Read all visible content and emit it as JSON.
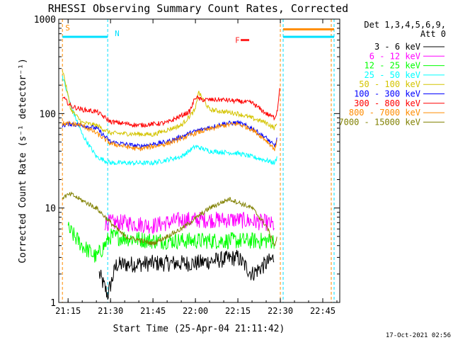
{
  "chart_data": {
    "type": "line",
    "title": "RHESSI Observing Summary Count Rates, Corrected",
    "xlabel": "Start Time (25-Apr-04 21:11:42)",
    "ylabel": "Corrected Count Rate (s⁻¹ detector⁻¹)",
    "yscale": "log",
    "ylim": [
      1,
      1000
    ],
    "xlim": [
      "21:11:42",
      "22:51:00"
    ],
    "x_ticks": [
      "21:15",
      "21:30",
      "21:45",
      "22:00",
      "22:15",
      "22:30",
      "22:45"
    ],
    "y_ticks": [
      "1",
      "10",
      "100",
      "1000"
    ],
    "legend_title": [
      "Det 1,3,4,5,6,9,",
      "Att 0"
    ],
    "legend_position": "right",
    "timestamp": "17-Oct-2021 02:56",
    "annotations": [
      {
        "label": "S",
        "time": "21:13",
        "color": "#ff8c00"
      },
      {
        "label": "N",
        "time": "21:30",
        "color": "#00e0ff"
      },
      {
        "label": "F",
        "time": "22:18",
        "color": "#ff2020"
      }
    ],
    "vertical_markers": [
      {
        "time": "21:13",
        "color": "#ff8c00"
      },
      {
        "time": "21:29",
        "color": "#00e0ff"
      },
      {
        "time": "22:30",
        "color": "#ff8c00"
      },
      {
        "time": "22:31",
        "color": "#00e0ff"
      },
      {
        "time": "22:48",
        "color": "#ff8c00"
      },
      {
        "time": "22:49",
        "color": "#00e0ff"
      }
    ],
    "series": [
      {
        "name": "3 - 6 keV",
        "color": "#000000",
        "t": [
          "21:26",
          "21:29",
          "21:32",
          "21:45",
          "22:00",
          "22:15",
          "22:20",
          "22:28"
        ],
        "v": [
          2.0,
          1.2,
          2.5,
          2.6,
          2.6,
          3.0,
          2.0,
          3.0
        ]
      },
      {
        "name": "6 - 12 keV",
        "color": "#ff00ff",
        "t": [
          "21:28",
          "21:35",
          "21:45",
          "21:55",
          "22:05",
          "22:15",
          "22:25",
          "22:28"
        ],
        "v": [
          7.0,
          7.0,
          6.5,
          7.5,
          7.5,
          7.5,
          7.0,
          6.5
        ]
      },
      {
        "name": "12 - 25 keV",
        "color": "#00ff00",
        "t": [
          "21:15",
          "21:20",
          "21:25",
          "21:30",
          "21:45",
          "22:00",
          "22:15",
          "22:25",
          "22:28"
        ],
        "v": [
          6.0,
          4.0,
          3.0,
          5.0,
          4.5,
          4.5,
          4.5,
          4.5,
          4.5
        ]
      },
      {
        "name": "25 - 50 keV",
        "color": "#00ffff",
        "t": [
          "21:13",
          "21:16",
          "21:20",
          "21:25",
          "21:30",
          "21:45",
          "21:55",
          "22:00",
          "22:05",
          "22:15",
          "22:25",
          "22:28",
          "22:29"
        ],
        "v": [
          250,
          120,
          60,
          35,
          30,
          30,
          35,
          45,
          40,
          38,
          32,
          30,
          35
        ]
      },
      {
        "name": "50 - 100 keV",
        "color": "#d4c400",
        "t": [
          "21:13",
          "21:16",
          "21:20",
          "21:25",
          "21:30",
          "21:45",
          "21:55",
          "22:00",
          "22:01",
          "22:05",
          "22:15",
          "22:25",
          "22:28",
          "22:29"
        ],
        "v": [
          300,
          110,
          80,
          75,
          62,
          60,
          75,
          110,
          170,
          110,
          100,
          80,
          70,
          80
        ]
      },
      {
        "name": "100 - 300 keV",
        "color": "#0000ff",
        "t": [
          "21:13",
          "21:16",
          "21:20",
          "21:25",
          "21:30",
          "21:40",
          "21:50",
          "22:00",
          "22:10",
          "22:15",
          "22:20",
          "22:25",
          "22:28",
          "22:29"
        ],
        "v": [
          75,
          78,
          75,
          70,
          50,
          45,
          50,
          65,
          78,
          80,
          70,
          55,
          45,
          55
        ]
      },
      {
        "name": "300 - 800 keV",
        "color": "#ff0000",
        "t": [
          "21:13",
          "21:16",
          "21:20",
          "21:25",
          "21:30",
          "21:40",
          "21:50",
          "21:58",
          "22:00",
          "22:02",
          "22:10",
          "22:20",
          "22:25",
          "22:28",
          "22:29",
          "22:30"
        ],
        "v": [
          150,
          120,
          110,
          105,
          82,
          75,
          80,
          105,
          150,
          140,
          140,
          130,
          100,
          90,
          110,
          220
        ]
      },
      {
        "name": "800 - 7000 keV",
        "color": "#ff8c00",
        "t": [
          "21:13",
          "21:16",
          "21:20",
          "21:25",
          "21:30",
          "21:40",
          "21:50",
          "22:00",
          "22:10",
          "22:15",
          "22:20",
          "22:25",
          "22:28",
          "22:29"
        ],
        "v": [
          78,
          78,
          75,
          62,
          48,
          42,
          48,
          62,
          75,
          78,
          68,
          52,
          42,
          52
        ]
      },
      {
        "name": "7000 - 15000 keV",
        "color": "#808000",
        "t": [
          "21:13",
          "21:16",
          "21:20",
          "21:25",
          "21:30",
          "21:35",
          "21:45",
          "21:55",
          "22:05",
          "22:12",
          "22:20",
          "22:25",
          "22:28",
          "22:29"
        ],
        "v": [
          13,
          14,
          12,
          10,
          7,
          5,
          4.2,
          6,
          10,
          12.5,
          10,
          6.5,
          4,
          5
        ]
      }
    ],
    "saturation_lines": [
      {
        "color": "#00e0ff",
        "t_start": "21:13",
        "t_end": "21:29",
        "v": 650
      },
      {
        "color": "#ff8c00",
        "t_start": "22:31",
        "t_end": "22:49",
        "v": 780
      },
      {
        "color": "#00e0ff",
        "t_start": "22:31",
        "t_end": "22:49",
        "v": 650
      }
    ],
    "flare_marker": {
      "color": "#ff2020",
      "t_start": "22:16",
      "t_end": "22:19",
      "v": 600
    }
  }
}
